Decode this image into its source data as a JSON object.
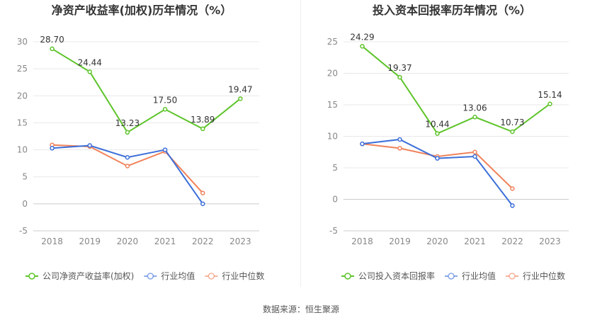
{
  "source": "数据来源：恒生聚源",
  "chart_data": [
    {
      "type": "line",
      "title": "净资产收益率(加权)历年情况（%）",
      "categories": [
        "2018",
        "2019",
        "2020",
        "2021",
        "2022",
        "2023"
      ],
      "ylim": [
        -5,
        30
      ],
      "yticks": [
        -5,
        0,
        5,
        10,
        15,
        20,
        25,
        30
      ],
      "grid": true,
      "legend_position": "bottom",
      "series": [
        {
          "name": "公司净资产收益率(加权)",
          "color": "#5ec42b",
          "labeled": true,
          "values": [
            28.7,
            24.44,
            13.23,
            17.5,
            13.89,
            19.47
          ],
          "labels": [
            "28.70",
            "24.44",
            "13.23",
            "17.50",
            "13.89",
            "19.47"
          ]
        },
        {
          "name": "行业均值",
          "color": "#3c6fd9",
          "labeled": false,
          "values": [
            10.3,
            10.8,
            8.6,
            10.0,
            0.0,
            null
          ]
        },
        {
          "name": "行业中位数",
          "color": "#f0825a",
          "labeled": false,
          "values": [
            10.9,
            10.6,
            7.0,
            9.7,
            2.0,
            null
          ]
        }
      ]
    },
    {
      "type": "line",
      "title": "投入资本回报率历年情况（%）",
      "categories": [
        "2018",
        "2019",
        "2020",
        "2021",
        "2022",
        "2023"
      ],
      "ylim": [
        -5,
        25
      ],
      "yticks": [
        -5,
        0,
        5,
        10,
        15,
        20,
        25
      ],
      "grid": true,
      "legend_position": "bottom",
      "series": [
        {
          "name": "公司投入资本回报率",
          "color": "#5ec42b",
          "labeled": true,
          "values": [
            24.29,
            19.37,
            10.44,
            13.06,
            10.73,
            15.14
          ],
          "labels": [
            "24.29",
            "19.37",
            "10.44",
            "13.06",
            "10.73",
            "15.14"
          ]
        },
        {
          "name": "行业均值",
          "color": "#3c6fd9",
          "labeled": false,
          "values": [
            8.8,
            9.5,
            6.5,
            6.8,
            -1.0,
            null
          ]
        },
        {
          "name": "行业中位数",
          "color": "#f0825a",
          "labeled": false,
          "values": [
            8.8,
            8.1,
            6.8,
            7.5,
            1.7,
            null
          ]
        }
      ]
    }
  ]
}
